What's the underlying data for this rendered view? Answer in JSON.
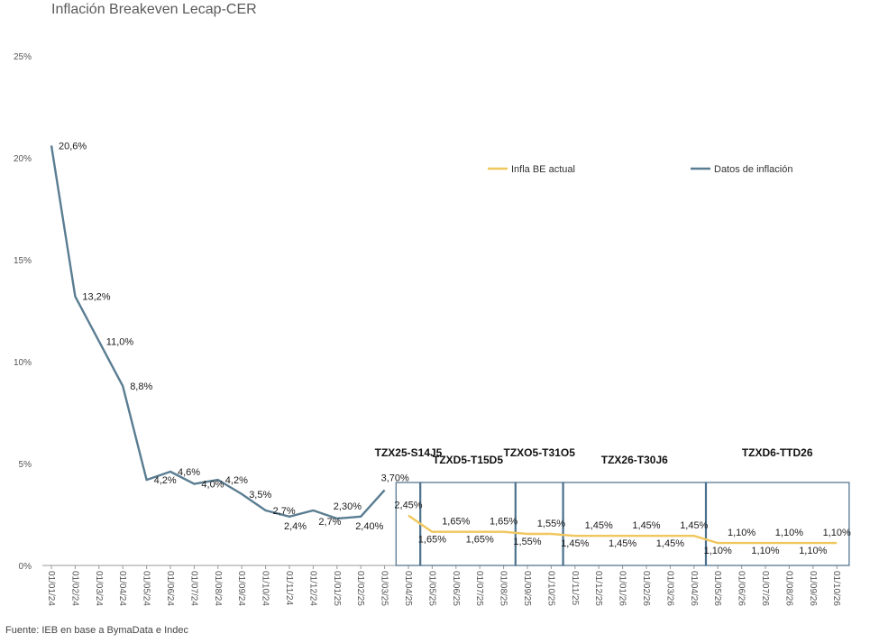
{
  "title": "Inflación Breakeven Lecap-CER",
  "source": "Fuente: IEB en base a BymaData e Indec",
  "colors": {
    "inflation": "#5a7d92",
    "breakeven": "#f0c75e",
    "box": "#4a6f8a",
    "axis": "#999999"
  },
  "chart_data": {
    "type": "line",
    "title": "Inflación Breakeven Lecap-CER",
    "xlabel": "",
    "ylabel": "",
    "ylim": [
      0,
      25
    ],
    "yticks": [
      "0%",
      "5%",
      "10%",
      "15%",
      "20%",
      "25%"
    ],
    "categories": [
      "01/01/24",
      "01/02/24",
      "01/03/24",
      "01/04/24",
      "01/05/24",
      "01/06/24",
      "01/07/24",
      "01/08/24",
      "01/09/24",
      "01/10/24",
      "01/11/24",
      "01/12/24",
      "01/01/25",
      "01/02/25",
      "01/03/25",
      "01/04/25",
      "01/05/25",
      "01/06/25",
      "01/07/25",
      "01/08/25",
      "01/09/25",
      "01/10/25",
      "01/11/25",
      "01/12/25",
      "01/01/26",
      "01/02/26",
      "01/03/26",
      "01/04/26",
      "01/05/26",
      "01/06/26",
      "01/07/26",
      "01/08/26",
      "01/09/26",
      "01/10/26"
    ],
    "legend": {
      "position": "top-right",
      "items": [
        "Infla BE actual",
        "Datos de inflación"
      ]
    },
    "series": [
      {
        "name": "Datos de inflación",
        "color": "#5a7d92",
        "points": [
          [
            0,
            20.6
          ],
          [
            1,
            13.2
          ],
          [
            2,
            11.0
          ],
          [
            3,
            8.8
          ],
          [
            4,
            4.2
          ],
          [
            5,
            4.6
          ],
          [
            6,
            4.0
          ],
          [
            7,
            4.2
          ],
          [
            8,
            3.5
          ],
          [
            9,
            2.7
          ],
          [
            10,
            2.4
          ],
          [
            11,
            2.7
          ],
          [
            12,
            2.3
          ],
          [
            13,
            2.4
          ],
          [
            14,
            3.7
          ]
        ]
      },
      {
        "name": "Infla BE actual",
        "color": "#f0c75e",
        "points": [
          [
            15,
            2.45
          ],
          [
            16,
            1.65
          ],
          [
            17,
            1.65
          ],
          [
            18,
            1.65
          ],
          [
            19,
            1.65
          ],
          [
            20,
            1.55
          ],
          [
            21,
            1.55
          ],
          [
            22,
            1.45
          ],
          [
            23,
            1.45
          ],
          [
            24,
            1.45
          ],
          [
            25,
            1.45
          ],
          [
            26,
            1.45
          ],
          [
            27,
            1.45
          ],
          [
            28,
            1.1
          ],
          [
            29,
            1.1
          ],
          [
            30,
            1.1
          ],
          [
            31,
            1.1
          ],
          [
            32,
            1.1
          ],
          [
            33,
            1.1
          ]
        ]
      }
    ],
    "data_labels": [
      {
        "x": 0,
        "y": 20.6,
        "text": "20,6%"
      },
      {
        "x": 1,
        "y": 13.2,
        "text": "13,2%"
      },
      {
        "x": 2,
        "y": 11.0,
        "text": "11,0%"
      },
      {
        "x": 3,
        "y": 8.8,
        "text": "8,8%"
      },
      {
        "x": 4,
        "y": 4.2,
        "text": "4,2%"
      },
      {
        "x": 5,
        "y": 4.6,
        "text": "4,6%"
      },
      {
        "x": 6,
        "y": 4.0,
        "text": "4,0%"
      },
      {
        "x": 7,
        "y": 4.2,
        "text": "4,2%"
      },
      {
        "x": 8,
        "y": 3.5,
        "text": "3,5%"
      },
      {
        "x": 9,
        "y": 2.7,
        "text": "2,7%"
      },
      {
        "x": 10,
        "y": 2.4,
        "text": "2,4%"
      },
      {
        "x": 11,
        "y": 2.7,
        "text": "2,7%"
      },
      {
        "x": 12,
        "y": 2.3,
        "text": "2,30%"
      },
      {
        "x": 13,
        "y": 2.4,
        "text": "2,40%"
      },
      {
        "x": 14,
        "y": 3.7,
        "text": "3,70%"
      },
      {
        "x": 15,
        "y": 2.45,
        "text": "2,45%"
      },
      {
        "x": 16,
        "y": 1.65,
        "text": "1,65%"
      },
      {
        "x": 17,
        "y": 1.65,
        "text": "1,65%"
      },
      {
        "x": 18,
        "y": 1.65,
        "text": "1,65%"
      },
      {
        "x": 19,
        "y": 1.65,
        "text": "1,65%"
      },
      {
        "x": 20,
        "y": 1.55,
        "text": "1,55%"
      },
      {
        "x": 21,
        "y": 1.55,
        "text": "1,55%"
      },
      {
        "x": 22,
        "y": 1.45,
        "text": "1,45%"
      },
      {
        "x": 23,
        "y": 1.45,
        "text": "1,45%"
      },
      {
        "x": 24,
        "y": 1.45,
        "text": "1,45%"
      },
      {
        "x": 25,
        "y": 1.45,
        "text": "1,45%"
      },
      {
        "x": 26,
        "y": 1.45,
        "text": "1,45%"
      },
      {
        "x": 27,
        "y": 1.45,
        "text": "1,45%"
      },
      {
        "x": 28,
        "y": 1.1,
        "text": "1,10%"
      },
      {
        "x": 29,
        "y": 1.1,
        "text": "1,10%"
      },
      {
        "x": 30,
        "y": 1.1,
        "text": "1,10%"
      },
      {
        "x": 31,
        "y": 1.1,
        "text": "1,10%"
      },
      {
        "x": 32,
        "y": 1.1,
        "text": "1,10%"
      },
      {
        "x": 33,
        "y": 1.1,
        "text": "1,10%"
      }
    ],
    "bond_groups": [
      {
        "label": "TZX25-S14J5",
        "from": 15,
        "to": 15
      },
      {
        "label": "TZXD5-T15D5",
        "from": 16,
        "to": 19
      },
      {
        "label": "TZXO5-T31O5",
        "from": 20,
        "to": 21
      },
      {
        "label": "TZX26-T30J6",
        "from": 22,
        "to": 27
      },
      {
        "label": "TZXD6-TTD26",
        "from": 28,
        "to": 33
      }
    ]
  }
}
